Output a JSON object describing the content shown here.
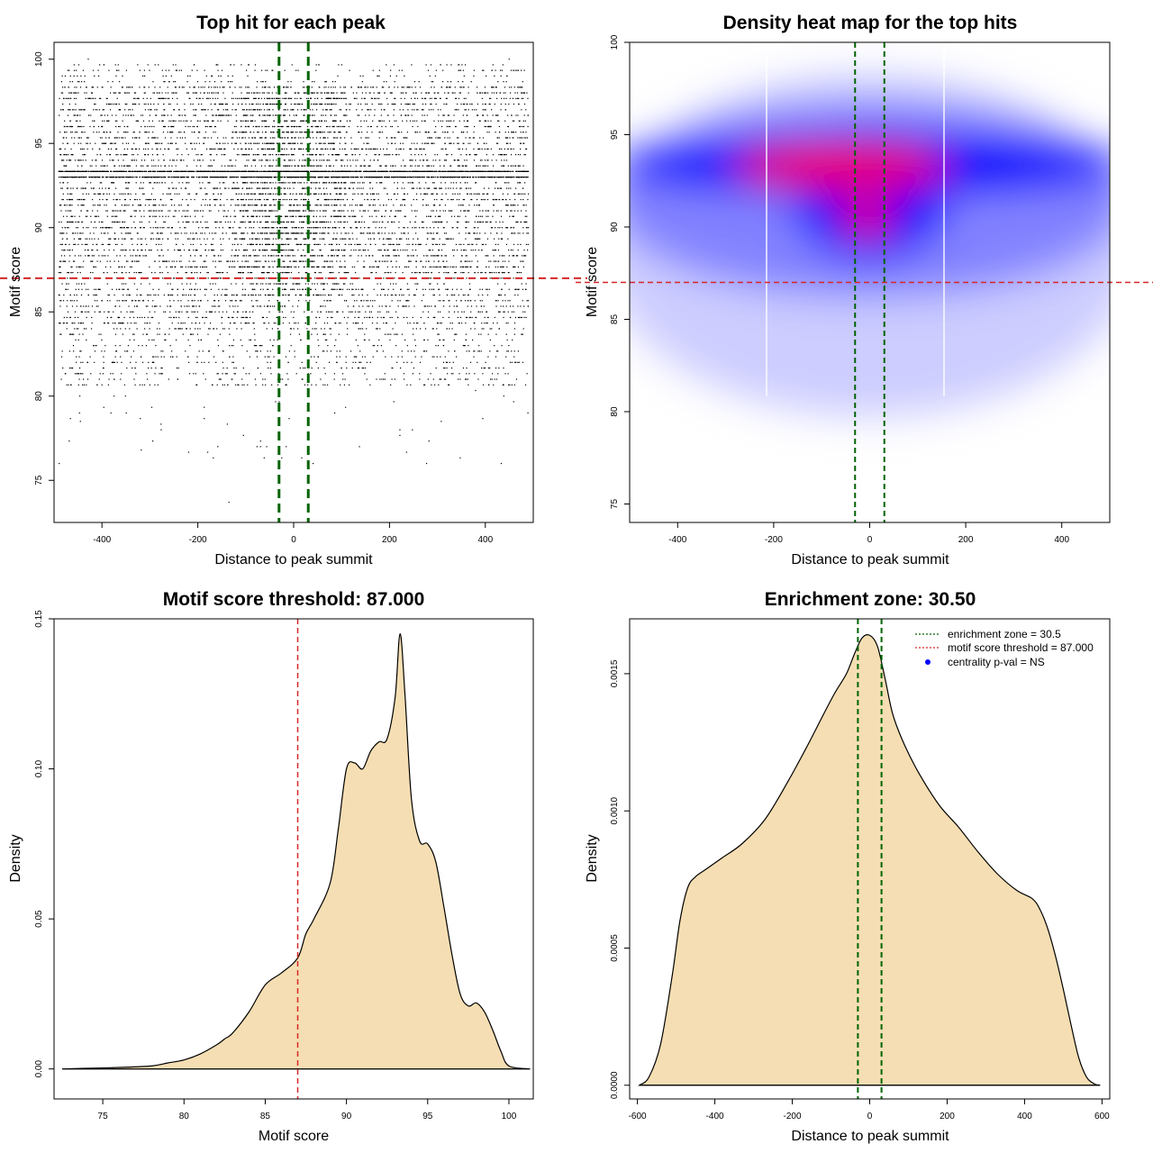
{
  "chart_data": [
    {
      "type": "scatter",
      "title": "Top hit for each peak",
      "xlabel": "Distance to peak summit",
      "ylabel": "Motif score",
      "xlim": [
        -500,
        500
      ],
      "ylim": [
        72.5,
        101
      ],
      "xticks": [
        "-400",
        "-200",
        "0",
        "200",
        "400"
      ],
      "yticks": [
        "75",
        "80",
        "85",
        "90",
        "95",
        "100"
      ],
      "threshold_y": 87.0,
      "enrichment_zone_x": [
        -30.5,
        30.5
      ],
      "grid": false,
      "point_color": "#000000",
      "threshold_color": "#d62728",
      "zone_color": "#006400",
      "approx_point_count": 9000,
      "note_points": "dense cloud, |x|<=490, scores mostly 84-99 with mode near 93.3"
    },
    {
      "type": "heatmap",
      "title": "Density heat map for the top hits",
      "xlabel": "Distance to peak summit",
      "ylabel": "Motif score",
      "xlim": [
        -500,
        500
      ],
      "ylim": [
        74,
        100
      ],
      "xticks": [
        "-400",
        "-200",
        "0",
        "200",
        "400"
      ],
      "yticks": [
        "75",
        "80",
        "85",
        "90",
        "95",
        "100"
      ],
      "threshold_y": 87.0,
      "enrichment_zone_x": [
        -30.5,
        30.5
      ],
      "colors": [
        "#ffffff",
        "#0000ff",
        "#ff0000"
      ],
      "hotspots": [
        {
          "x": -20,
          "y": 93.2,
          "level": "high"
        },
        {
          "x": -5,
          "y": 90.5,
          "level": "high"
        },
        {
          "x": 0,
          "y": 93.5,
          "level": "medium"
        }
      ]
    },
    {
      "type": "area",
      "title": "Motif score threshold: 87.000",
      "xlabel": "Motif score",
      "ylabel": "Density",
      "xlim": [
        72,
        101.5
      ],
      "ylim": [
        -0.01,
        0.15
      ],
      "xticks": [
        "75",
        "80",
        "85",
        "90",
        "95",
        "100"
      ],
      "yticks": [
        "0.00",
        "0.05",
        "0.10",
        "0.15"
      ],
      "threshold_x": 87.0,
      "fill": "#f5deb3",
      "x": [
        72.5,
        74,
        76,
        78,
        79,
        80,
        81,
        82,
        82.5,
        83,
        84,
        85,
        86,
        87,
        87.5,
        88,
        89,
        89.5,
        90,
        90.5,
        91,
        91.5,
        92,
        92.5,
        93,
        93.3,
        93.6,
        94,
        94.5,
        95,
        95.5,
        96,
        96.5,
        97,
        97.5,
        98,
        98.5,
        99,
        99.5,
        100,
        101.3
      ],
      "y": [
        0.0,
        0.0002,
        0.0005,
        0.001,
        0.002,
        0.003,
        0.005,
        0.008,
        0.01,
        0.012,
        0.019,
        0.028,
        0.032,
        0.037,
        0.045,
        0.05,
        0.062,
        0.08,
        0.1,
        0.102,
        0.1,
        0.106,
        0.109,
        0.11,
        0.124,
        0.145,
        0.125,
        0.09,
        0.076,
        0.075,
        0.069,
        0.054,
        0.038,
        0.025,
        0.021,
        0.022,
        0.019,
        0.013,
        0.006,
        0.001,
        0.0
      ]
    },
    {
      "type": "area",
      "title": "Enrichment zone: 30.50",
      "xlabel": "Distance to peak summit",
      "ylabel": "Density",
      "xlim": [
        -620,
        620
      ],
      "ylim": [
        -5e-05,
        0.0017
      ],
      "xticks": [
        "-600",
        "-400",
        "-200",
        "0",
        "200",
        "400",
        "600"
      ],
      "yticks": [
        "0.0000",
        "0.0005",
        "0.0010",
        "0.0015"
      ],
      "enrichment_zone_x": [
        -30.5,
        30.5
      ],
      "fill": "#f5deb3",
      "x": [
        -595,
        -570,
        -540,
        -510,
        -490,
        -470,
        -450,
        -420,
        -380,
        -330,
        -270,
        -210,
        -160,
        -120,
        -90,
        -60,
        -40,
        -20,
        0,
        20,
        40,
        60,
        90,
        130,
        180,
        230,
        280,
        330,
        380,
        420,
        440,
        460,
        480,
        500,
        520,
        540,
        560,
        580,
        595
      ],
      "y": [
        0.0,
        3e-05,
        0.00015,
        0.0004,
        0.0006,
        0.00072,
        0.00076,
        0.00079,
        0.00083,
        0.00088,
        0.00097,
        0.00111,
        0.00124,
        0.00135,
        0.00143,
        0.0015,
        0.00157,
        0.00163,
        0.00164,
        0.0016,
        0.00148,
        0.00135,
        0.00124,
        0.00113,
        0.00102,
        0.00094,
        0.00085,
        0.00077,
        0.00071,
        0.00068,
        0.00064,
        0.00057,
        0.00047,
        0.00035,
        0.00022,
        0.0001,
        3e-05,
        5e-06,
        0.0
      ],
      "legend": [
        {
          "label": "enrichment zone = 30.5",
          "symbol": "dotted-line",
          "color": "#006400"
        },
        {
          "label": "motif score threshold = 87.000",
          "symbol": "dotted-line",
          "color": "#d62728"
        },
        {
          "label": "centrality p-val = NS",
          "symbol": "dot",
          "color": "#0000ff"
        }
      ],
      "legend_position": "top-right"
    }
  ]
}
